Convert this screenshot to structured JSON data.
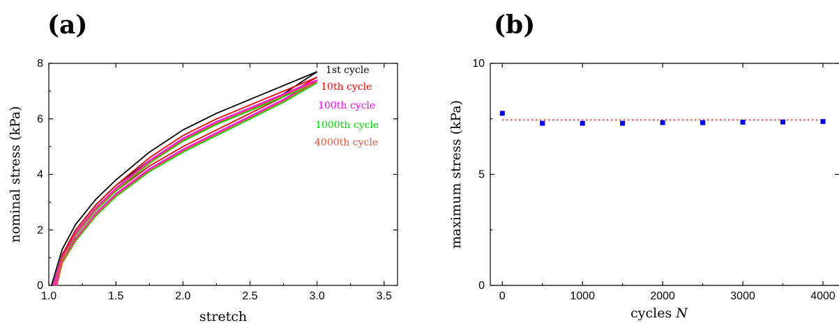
{
  "panels": {
    "a_label": "(a)",
    "b_label": "(b)"
  },
  "chart_data": [
    {
      "type": "line",
      "panel": "(a)",
      "xlabel": "stretch",
      "ylabel": "nominal stress (kPa)",
      "xlim": [
        1.0,
        3.6
      ],
      "ylim": [
        0,
        8
      ],
      "xticks": [
        "1.0",
        "1.5",
        "2.0",
        "2.5",
        "3.0",
        "3.5"
      ],
      "yticks": [
        "0",
        "2",
        "4",
        "6",
        "8"
      ],
      "grid": false,
      "legend_position": "top-right",
      "series": [
        {
          "name": "1st cycle",
          "color": "#000000",
          "loading": {
            "x": [
              1.02,
              1.1,
              1.2,
              1.35,
              1.5,
              1.75,
              2.0,
              2.25,
              2.5,
              2.75,
              3.0
            ],
            "y": [
              0,
              1.3,
              2.2,
              3.1,
              3.8,
              4.8,
              5.6,
              6.2,
              6.7,
              7.2,
              7.7
            ]
          },
          "unloading": {
            "x": [
              3.0,
              2.75,
              2.5,
              2.25,
              2.0,
              1.75,
              1.5,
              1.35,
              1.2,
              1.1,
              1.04
            ],
            "y": [
              7.7,
              6.9,
              6.3,
              5.8,
              5.2,
              4.5,
              3.6,
              2.9,
              2.0,
              1.1,
              0
            ]
          }
        },
        {
          "name": "10th cycle",
          "color": "#ff0000",
          "loading": {
            "x": [
              1.03,
              1.1,
              1.2,
              1.35,
              1.5,
              1.75,
              2.0,
              2.25,
              2.5,
              2.75,
              3.0
            ],
            "y": [
              0,
              1.1,
              2.0,
              2.9,
              3.6,
              4.6,
              5.4,
              6.0,
              6.5,
              7.0,
              7.5
            ]
          },
          "unloading": {
            "x": [
              3.0,
              2.75,
              2.5,
              2.25,
              2.0,
              1.75,
              1.5,
              1.35,
              1.2,
              1.1,
              1.05
            ],
            "y": [
              7.5,
              6.8,
              6.2,
              5.6,
              5.0,
              4.3,
              3.4,
              2.7,
              1.8,
              0.9,
              0
            ]
          }
        },
        {
          "name": "100th cycle",
          "color": "#ff00ff",
          "loading": {
            "x": [
              1.03,
              1.1,
              1.2,
              1.35,
              1.5,
              1.75,
              2.0,
              2.25,
              2.5,
              2.75,
              3.0
            ],
            "y": [
              0,
              1.0,
              1.9,
              2.8,
              3.5,
              4.5,
              5.3,
              5.9,
              6.4,
              6.9,
              7.4
            ]
          },
          "unloading": {
            "x": [
              3.0,
              2.75,
              2.5,
              2.25,
              2.0,
              1.75,
              1.5,
              1.35,
              1.2,
              1.1,
              1.05
            ],
            "y": [
              7.4,
              6.7,
              6.1,
              5.5,
              4.9,
              4.2,
              3.3,
              2.6,
              1.7,
              0.85,
              0
            ]
          }
        },
        {
          "name": "1000th cycle",
          "color": "#00dd00",
          "loading": {
            "x": [
              1.04,
              1.1,
              1.2,
              1.35,
              1.5,
              1.75,
              2.0,
              2.25,
              2.5,
              2.75,
              3.0
            ],
            "y": [
              0,
              0.9,
              1.8,
              2.7,
              3.4,
              4.4,
              5.2,
              5.8,
              6.3,
              6.8,
              7.3
            ]
          },
          "unloading": {
            "x": [
              3.0,
              2.75,
              2.5,
              2.25,
              2.0,
              1.75,
              1.5,
              1.35,
              1.2,
              1.1,
              1.06
            ],
            "y": [
              7.3,
              6.6,
              6.0,
              5.4,
              4.8,
              4.1,
              3.2,
              2.5,
              1.6,
              0.8,
              0
            ]
          }
        },
        {
          "name": "4000th cycle",
          "color": "#e8573c",
          "loading": {
            "x": [
              1.04,
              1.1,
              1.2,
              1.35,
              1.5,
              1.75,
              2.0,
              2.25,
              2.5,
              2.75,
              3.0
            ],
            "y": [
              0,
              0.95,
              1.85,
              2.75,
              3.45,
              4.45,
              5.25,
              5.85,
              6.35,
              6.85,
              7.35
            ]
          },
          "unloading": {
            "x": [
              3.0,
              2.75,
              2.5,
              2.25,
              2.0,
              1.75,
              1.5,
              1.35,
              1.2,
              1.1,
              1.06
            ],
            "y": [
              7.35,
              6.65,
              6.05,
              5.45,
              4.85,
              4.15,
              3.25,
              2.55,
              1.65,
              0.82,
              0
            ]
          }
        }
      ]
    },
    {
      "type": "scatter",
      "panel": "(b)",
      "xlabel": "cycles",
      "xlabel_var": "N",
      "ylabel": "maximum stress (kPa)",
      "xlim": [
        -150,
        4200
      ],
      "ylim": [
        0,
        10
      ],
      "xticks": [
        "0",
        "1000",
        "2000",
        "3000",
        "4000"
      ],
      "yticks": [
        "0",
        "5",
        "10"
      ],
      "grid": false,
      "series": [
        {
          "color": "#0000ff",
          "x": [
            0,
            500,
            1000,
            1500,
            2000,
            2500,
            3000,
            3500,
            4000
          ],
          "y": [
            7.75,
            7.3,
            7.3,
            7.3,
            7.33,
            7.33,
            7.35,
            7.36,
            7.38
          ]
        }
      ],
      "reference_line": {
        "y": 7.45,
        "color": "#ff0000",
        "style": "dotted"
      }
    }
  ]
}
